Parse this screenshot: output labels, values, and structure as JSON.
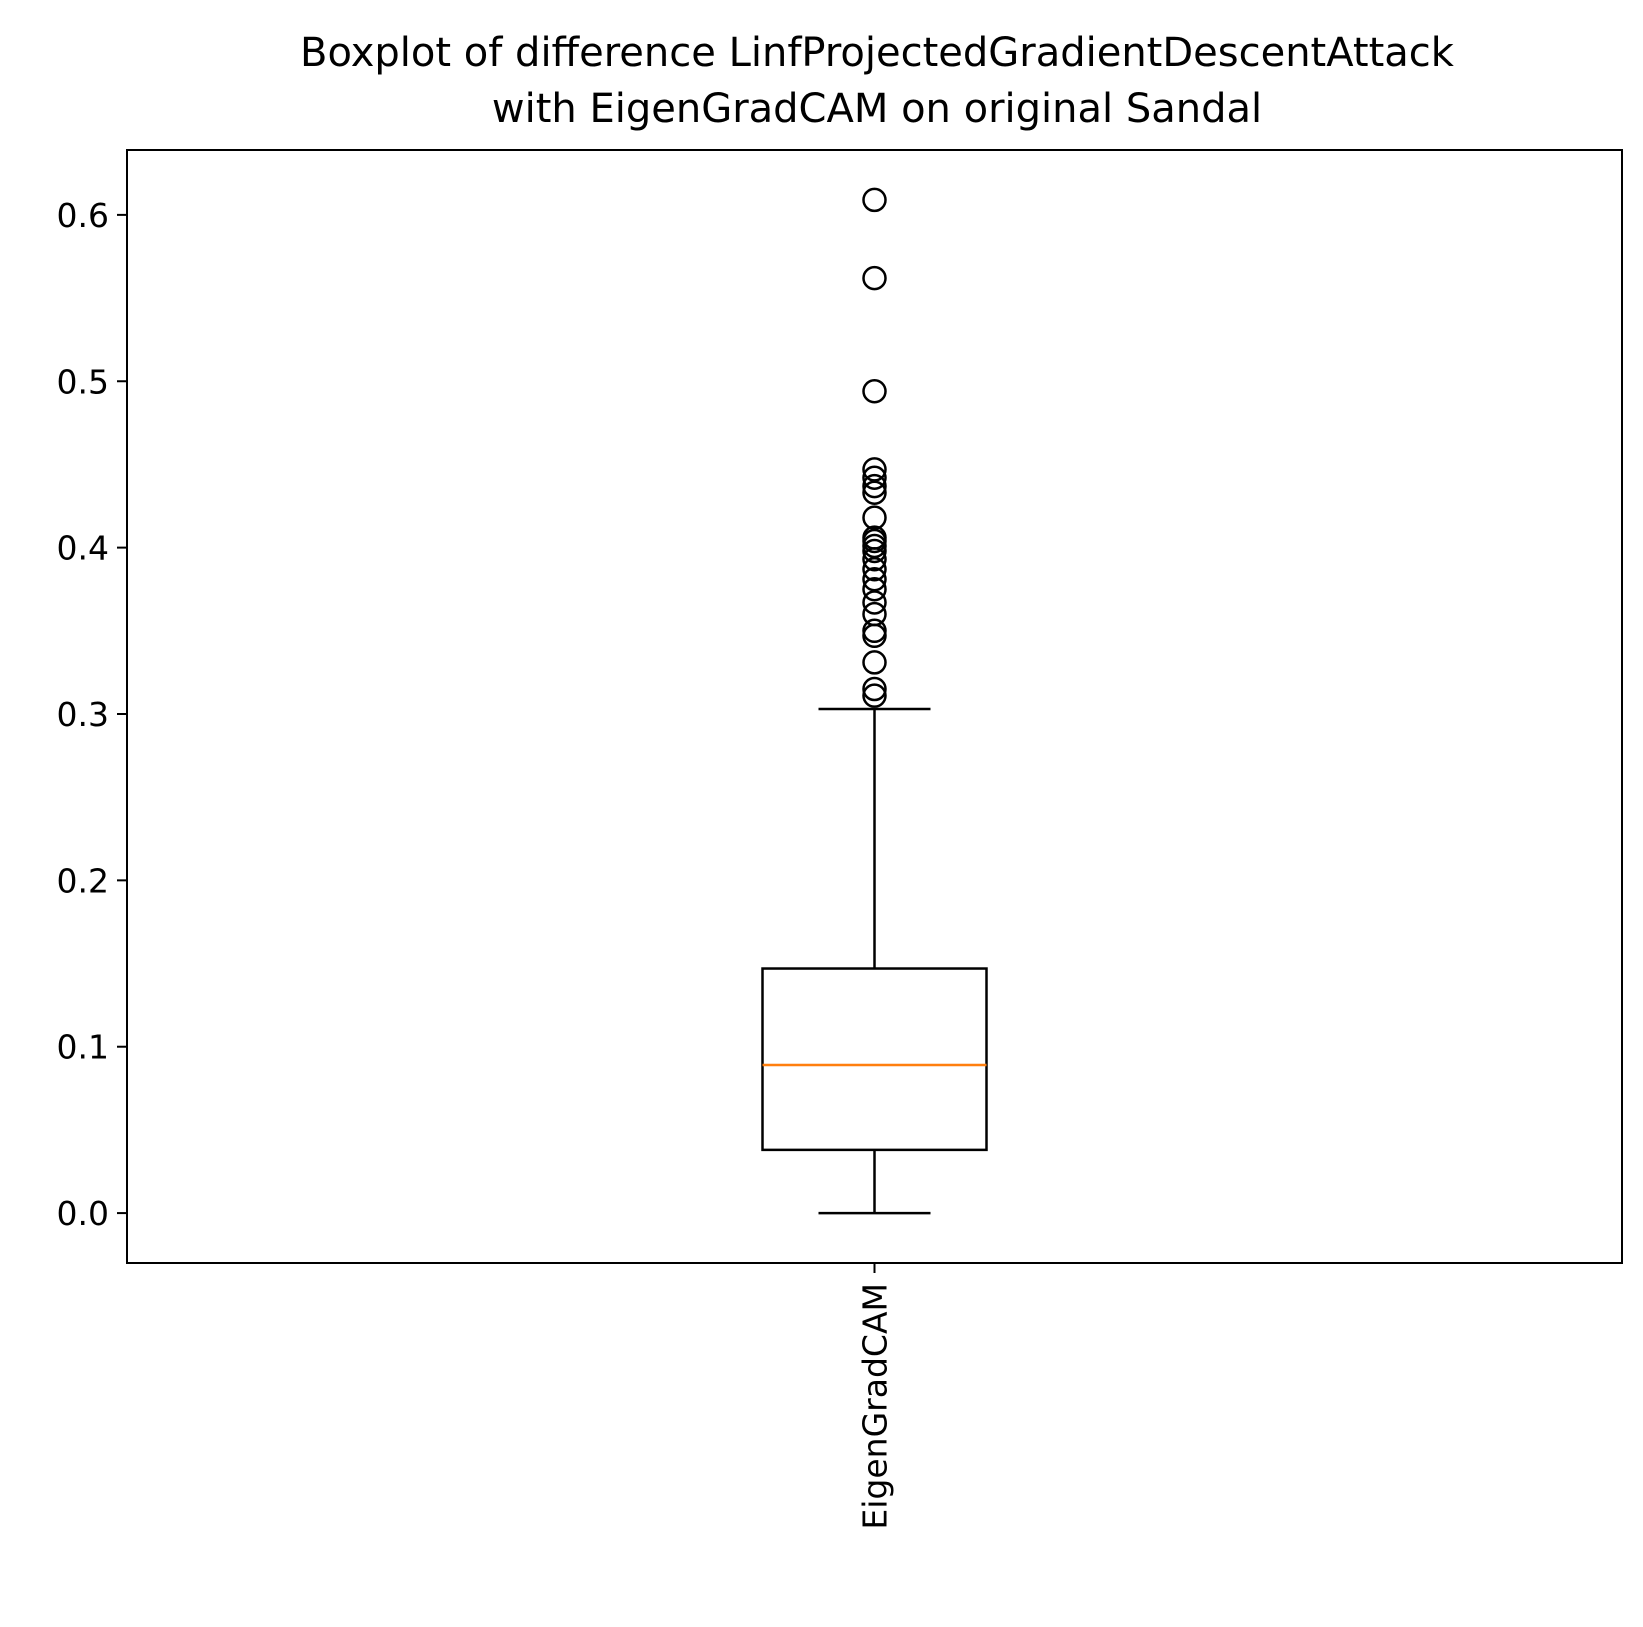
{
  "chart_data": {
    "type": "boxplot",
    "title_lines": [
      "Boxplot of difference LinfProjectedGradientDescentAttack",
      "with EigenGradCAM on original Sandal"
    ],
    "xlabel": "",
    "ylabel": "",
    "categories": [
      "EigenGradCAM"
    ],
    "ylim": [
      -0.03,
      0.639
    ],
    "yticks": [
      0.0,
      0.1,
      0.2,
      0.3,
      0.4,
      0.5,
      0.6
    ],
    "ytick_labels": [
      "0.0",
      "0.1",
      "0.2",
      "0.3",
      "0.4",
      "0.5",
      "0.6"
    ],
    "grid": false,
    "boxes": [
      {
        "category": "EigenGradCAM",
        "whisker_low": 0.0,
        "q1": 0.038,
        "median": 0.089,
        "q3": 0.147,
        "whisker_high": 0.303,
        "outliers": [
          0.311,
          0.315,
          0.331,
          0.347,
          0.35,
          0.36,
          0.367,
          0.375,
          0.381,
          0.387,
          0.393,
          0.398,
          0.401,
          0.404,
          0.406,
          0.418,
          0.433,
          0.437,
          0.442,
          0.447,
          0.494,
          0.562,
          0.609
        ]
      }
    ],
    "colors": {
      "box": "#000000",
      "median": "#ff7f0e",
      "outlier": "#000000"
    }
  }
}
